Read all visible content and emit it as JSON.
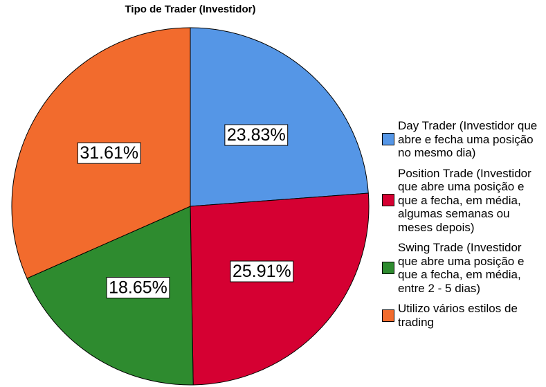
{
  "chart_data": {
    "type": "pie",
    "title": "Tipo de Trader (Investidor)",
    "categories": [
      "Day Trader (Investidor que abre e fecha uma posição no mesmo dia)",
      "Position Trade (Investidor que abre uma posição e que a fecha, em média, algumas semanas ou meses depois)",
      "Swing Trade (Investidor que abre uma posição e que a fecha, em média, entre 2 - 5 dias)",
      "Utilizo vários estilos de trading"
    ],
    "values": [
      23.83,
      25.91,
      18.65,
      31.61
    ],
    "value_labels": [
      "23.83%",
      "25.91%",
      "18.65%",
      "31.61%"
    ],
    "colors": [
      "#5596e6",
      "#d50032",
      "#2e8b2f",
      "#f26b2d"
    ]
  }
}
